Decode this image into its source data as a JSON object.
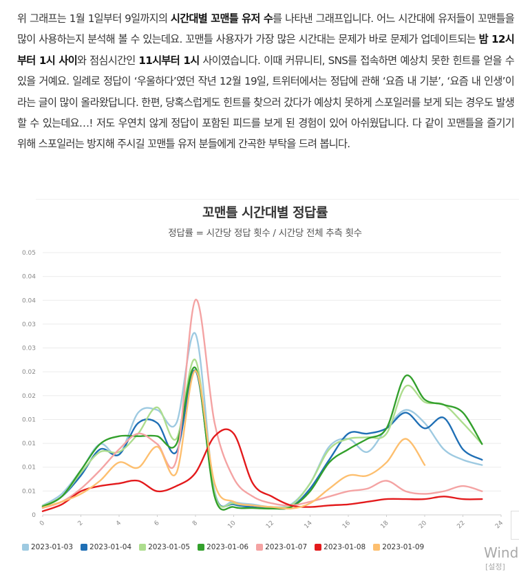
{
  "article": {
    "t1": "위 그래프는 1월 1일부터 9일까지의 ",
    "b1": "시간대별 꼬맨틀 유저 수",
    "t2": "를 나타낸 그래프입니다. 어느 시간대에 유저들이 꼬맨틀을 많이 사용하는지 분석해 볼 수 있는데요. 꼬맨틀 사용자가 가장 많은 시간대는 문제가 바로 문제가 업데이트되는 ",
    "b2": "밤 12시부터 1시 사이",
    "t3": "와 점심시간인 ",
    "b3": "11시부터 1시",
    "t4": " 사이였습니다. 이때 커뮤니티, SNS를 접속하면 예상치 못한 힌트를 얻을 수 있을 거예요. 일례로 정답이 ‘우울하다’였던 작년 12월 19일, 트위터에서는 정답에 관해 ‘요즘 내 기분’, ‘요즘 내 인생’이라는 글이 많이 올라왔답니다. 한편, 당혹스럽게도 힌트를 찾으러 갔다가 예상치 못하게 스포일러를 보게 되는 경우도 발생할 수 있는데요…! 저도 우연치 않게 정답이 포함된 피드를 보게 된 경험이 있어 아쉬웠답니다. 다 같이 꼬맨틀을 즐기기 위해 스포일러는 방지해 주시길 꼬맨틀 유저 분들에게 간곡한 부탁을 드려 봅니다."
  },
  "watermark": {
    "title": "Windo",
    "sub": "[설정]"
  },
  "chart_data": {
    "type": "line",
    "title": "꼬맨틀 시간대별 정답률",
    "subtitle": "정답률 = 시간당 정답 횟수 / 시간당 전체 추측 횟수",
    "xlabel": "",
    "ylabel": "",
    "xlim": [
      0,
      24
    ],
    "ylim": [
      0,
      0.05
    ],
    "x_ticks": [
      "0",
      "2",
      "4",
      "6",
      "8",
      "10",
      "12",
      "14",
      "16",
      "18",
      "20",
      "22",
      "24"
    ],
    "y_ticks": [
      "0",
      "0.01",
      "0.01",
      "0.01",
      "0.01",
      "0.02",
      "0.02",
      "0.03",
      "0.03",
      "0.04",
      "0.04",
      "0.05"
    ],
    "series": [
      {
        "name": "2023-01-03",
        "color": "#9ecae1",
        "x": [
          0,
          1,
          2,
          3,
          4,
          5,
          6,
          7,
          8,
          9,
          10,
          11,
          12,
          13,
          14,
          15,
          16,
          17,
          18,
          19,
          20,
          21,
          22,
          23
        ],
        "values": [
          0.0018,
          0.004,
          0.0085,
          0.0135,
          0.0115,
          0.0195,
          0.02,
          0.0175,
          0.0345,
          0.0045,
          0.0025,
          0.002,
          0.0015,
          0.002,
          0.006,
          0.013,
          0.0145,
          0.012,
          0.0165,
          0.02,
          0.0175,
          0.0125,
          0.0105,
          0.0095
        ]
      },
      {
        "name": "2023-01-04",
        "color": "#1f6fb5",
        "x": [
          0,
          1,
          2,
          3,
          4,
          5,
          6,
          7,
          8,
          9,
          10,
          11,
          12,
          13,
          14,
          15,
          16,
          17,
          18,
          19,
          20,
          21,
          22,
          23
        ],
        "values": [
          0.0015,
          0.0035,
          0.0075,
          0.0125,
          0.0115,
          0.0175,
          0.0175,
          0.012,
          0.0275,
          0.004,
          0.002,
          0.0015,
          0.0013,
          0.0015,
          0.005,
          0.0105,
          0.0155,
          0.0155,
          0.0165,
          0.0195,
          0.0165,
          0.0185,
          0.0125,
          0.0105
        ]
      },
      {
        "name": "2023-01-05",
        "color": "#addd8e",
        "x": [
          0,
          1,
          2,
          3,
          4,
          5,
          6,
          7,
          8,
          9,
          10,
          11,
          12,
          13,
          14,
          15,
          16,
          17,
          18,
          19,
          20,
          21,
          22,
          23
        ],
        "values": [
          0.0017,
          0.0035,
          0.008,
          0.012,
          0.012,
          0.0155,
          0.0205,
          0.0145,
          0.0295,
          0.004,
          0.0022,
          0.0018,
          0.0015,
          0.0018,
          0.006,
          0.0125,
          0.0145,
          0.0148,
          0.0155,
          0.0245,
          0.0215,
          0.021,
          0.0175,
          0.0135
        ]
      },
      {
        "name": "2023-01-06",
        "color": "#33a02c",
        "x": [
          0,
          1,
          2,
          3,
          4,
          5,
          6,
          7,
          8,
          9,
          10,
          11,
          12,
          13,
          14,
          15,
          16,
          17,
          18,
          19,
          20,
          21,
          22,
          23
        ],
        "values": [
          0.0016,
          0.0035,
          0.0085,
          0.0135,
          0.015,
          0.015,
          0.015,
          0.0135,
          0.028,
          0.0035,
          0.0015,
          0.0013,
          0.0012,
          0.0015,
          0.0045,
          0.01,
          0.0125,
          0.0145,
          0.0165,
          0.0265,
          0.022,
          0.021,
          0.0195,
          0.0135
        ]
      },
      {
        "name": "2023-01-07",
        "color": "#f4a3a3",
        "x": [
          0,
          1,
          2,
          3,
          4,
          5,
          6,
          7,
          8,
          9,
          10,
          11,
          12,
          13,
          14,
          15,
          16,
          17,
          18,
          19,
          20,
          21,
          22,
          23
        ],
        "values": [
          0.0013,
          0.0025,
          0.005,
          0.0085,
          0.0125,
          0.0155,
          0.0135,
          0.0105,
          0.041,
          0.0175,
          0.007,
          0.0035,
          0.0022,
          0.0018,
          0.0025,
          0.0035,
          0.0045,
          0.005,
          0.0065,
          0.0045,
          0.004,
          0.0045,
          0.0055,
          0.0045
        ]
      },
      {
        "name": "2023-01-08",
        "color": "#e31a1c",
        "x": [
          0,
          1,
          2,
          3,
          4,
          5,
          6,
          7,
          8,
          9,
          10,
          11,
          12,
          13,
          14,
          15,
          16,
          17,
          18,
          19,
          20,
          21,
          22,
          23
        ],
        "values": [
          0.0007,
          0.002,
          0.0045,
          0.0055,
          0.006,
          0.0065,
          0.0045,
          0.0055,
          0.008,
          0.015,
          0.0155,
          0.006,
          0.0035,
          0.0018,
          0.0015,
          0.0018,
          0.002,
          0.0025,
          0.003,
          0.003,
          0.003,
          0.0035,
          0.003,
          0.003
        ]
      },
      {
        "name": "2023-01-09",
        "color": "#fdbf6f",
        "x": [
          0,
          1,
          2,
          3,
          4,
          5,
          6,
          7,
          8,
          9,
          10,
          11,
          12,
          13,
          14,
          15,
          16,
          17,
          18,
          19,
          20
        ],
        "values": [
          0.0014,
          0.0025,
          0.004,
          0.0065,
          0.01,
          0.009,
          0.013,
          0.008,
          0.0275,
          0.006,
          0.0025,
          0.0018,
          0.0015,
          0.0012,
          0.0022,
          0.005,
          0.0075,
          0.0075,
          0.01,
          0.0145,
          0.0095
        ]
      }
    ]
  }
}
